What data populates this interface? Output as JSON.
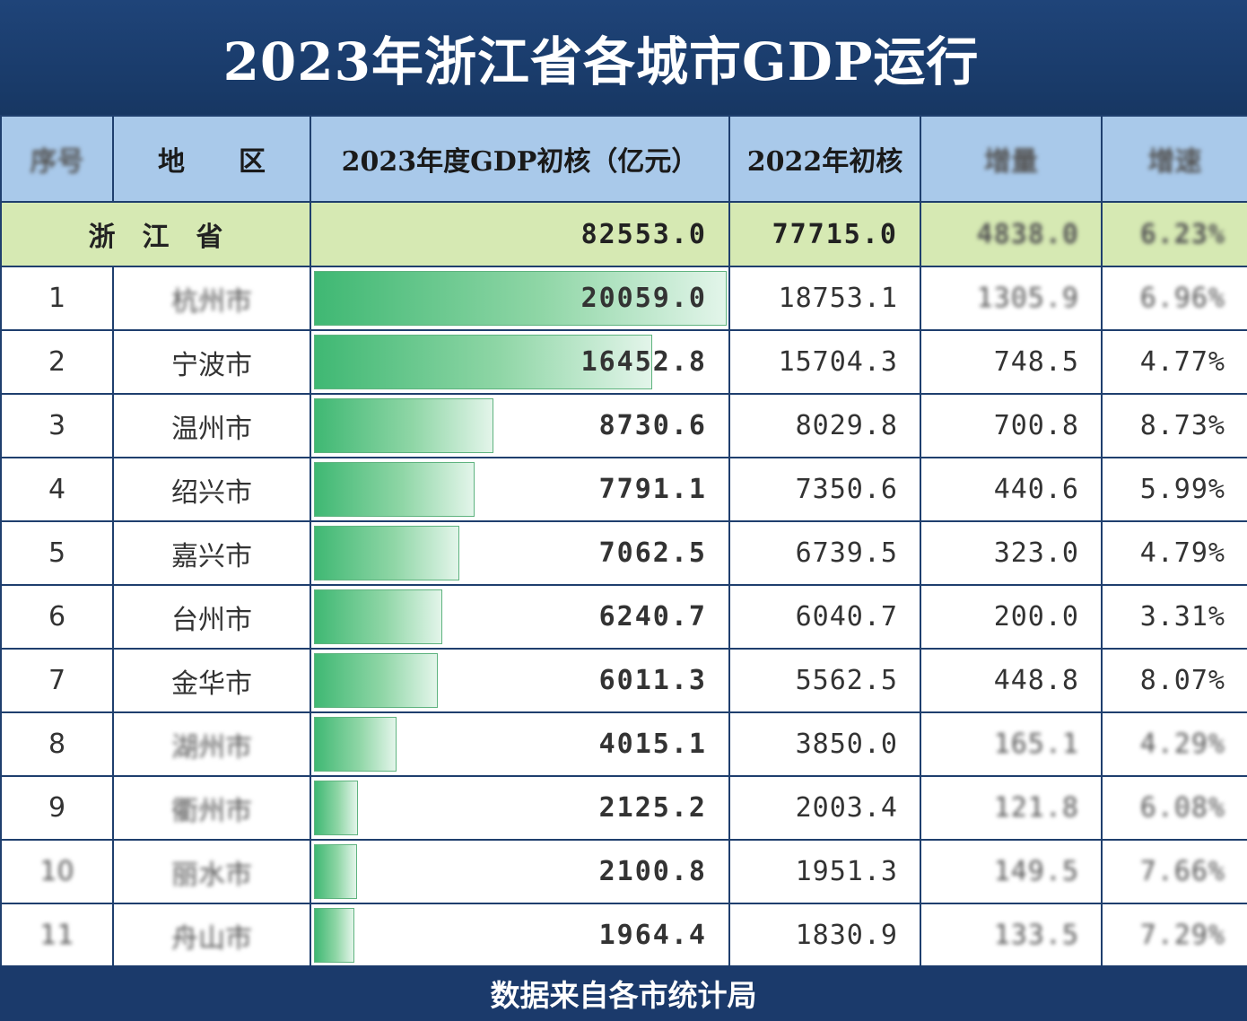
{
  "title": "2023年浙江省各城市GDP运行",
  "columns": {
    "rank": "序号",
    "region": "地　　区",
    "gdp2023": "2023年度GDP初核（亿元）",
    "gdp2022": "2022年初核",
    "growth": "增量",
    "rate": "增速"
  },
  "province": {
    "name": "浙　江　省",
    "gdp2023": "82553.0",
    "gdp2022": "77715.0",
    "growth": "4838.0",
    "rate": "6.23%"
  },
  "rows": [
    {
      "rank": "1",
      "name": "杭州市",
      "gdp2023": "20059.0",
      "gdp2022": "18753.1",
      "growth": "1305.9",
      "rate": "6.96%"
    },
    {
      "rank": "2",
      "name": "宁波市",
      "gdp2023": "16452.8",
      "gdp2022": "15704.3",
      "growth": "748.5",
      "rate": "4.77%"
    },
    {
      "rank": "3",
      "name": "温州市",
      "gdp2023": "8730.6",
      "gdp2022": "8029.8",
      "growth": "700.8",
      "rate": "8.73%"
    },
    {
      "rank": "4",
      "name": "绍兴市",
      "gdp2023": "7791.1",
      "gdp2022": "7350.6",
      "growth": "440.6",
      "rate": "5.99%"
    },
    {
      "rank": "5",
      "name": "嘉兴市",
      "gdp2023": "7062.5",
      "gdp2022": "6739.5",
      "growth": "323.0",
      "rate": "4.79%"
    },
    {
      "rank": "6",
      "name": "台州市",
      "gdp2023": "6240.7",
      "gdp2022": "6040.7",
      "growth": "200.0",
      "rate": "3.31%"
    },
    {
      "rank": "7",
      "name": "金华市",
      "gdp2023": "6011.3",
      "gdp2022": "5562.5",
      "growth": "448.8",
      "rate": "8.07%"
    },
    {
      "rank": "8",
      "name": "湖州市",
      "gdp2023": "4015.1",
      "gdp2022": "3850.0",
      "growth": "165.1",
      "rate": "4.29%"
    },
    {
      "rank": "9",
      "name": "衢州市",
      "gdp2023": "2125.2",
      "gdp2022": "2003.4",
      "growth": "121.8",
      "rate": "6.08%"
    },
    {
      "rank": "10",
      "name": "丽水市",
      "gdp2023": "2100.8",
      "gdp2022": "1951.3",
      "growth": "149.5",
      "rate": "7.66%"
    },
    {
      "rank": "11",
      "name": "舟山市",
      "gdp2023": "1964.4",
      "gdp2022": "1830.9",
      "growth": "133.5",
      "rate": "7.29%"
    }
  ],
  "blurred_rows": [
    0,
    7,
    8,
    9,
    10
  ],
  "footer": "数据来自各市统计局",
  "colors": {
    "header_bg": "#1b3a6b",
    "column_header_bg": "#a9c9ea",
    "province_row_bg": "#d6e9b3",
    "bar_start": "#3fb873",
    "bar_end": "#e3f5ea"
  },
  "chart_data": {
    "type": "table",
    "title": "2023年浙江省各城市GDP运行",
    "categories": [
      "杭州市",
      "宁波市",
      "温州市",
      "绍兴市",
      "嘉兴市",
      "台州市",
      "金华市",
      "湖州市",
      "衢州市",
      "丽水市",
      "舟山市"
    ],
    "series": [
      {
        "name": "2023年度GDP初核（亿元）",
        "values": [
          20059.0,
          16452.8,
          8730.6,
          7791.1,
          7062.5,
          6240.7,
          6011.3,
          4015.1,
          2125.2,
          2100.8,
          1964.4
        ]
      },
      {
        "name": "2022年初核",
        "values": [
          18753.1,
          15704.3,
          8029.8,
          7350.6,
          6739.5,
          6040.7,
          5562.5,
          3850.0,
          2003.4,
          1951.3,
          1830.9
        ]
      }
    ],
    "bar_max": 20059.0
  }
}
